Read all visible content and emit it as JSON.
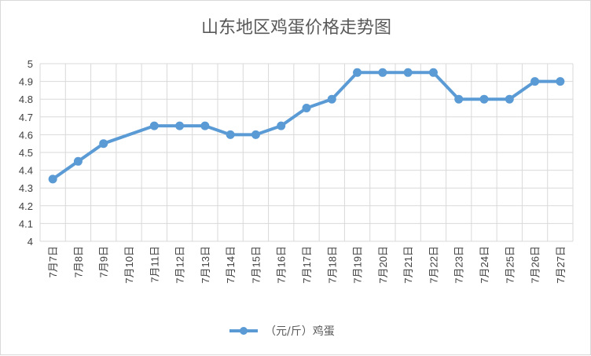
{
  "chart_data": {
    "type": "line",
    "title": "山东地区鸡蛋价格走势图",
    "categories": [
      "7月7日",
      "7月8日",
      "7月9日",
      "7月10日",
      "7月11日",
      "7月12日",
      "7月13日",
      "7月14日",
      "7月15日",
      "7月16日",
      "7月17日",
      "7月18日",
      "7月19日",
      "7月20日",
      "7月21日",
      "7月22日",
      "7月23日",
      "7月24日",
      "7月25日",
      "7月26日",
      "7月27日"
    ],
    "series": [
      {
        "name": "（元/斤）鸡蛋",
        "color": "#5b9bd5",
        "values": [
          4.35,
          4.45,
          4.55,
          null,
          4.65,
          4.65,
          4.65,
          4.6,
          4.6,
          4.65,
          4.75,
          4.8,
          4.95,
          4.95,
          4.95,
          4.95,
          4.8,
          4.8,
          4.8,
          4.9,
          4.9
        ]
      }
    ],
    "yticks": [
      "4",
      "4.1",
      "4.2",
      "4.3",
      "4.4",
      "4.5",
      "4.6",
      "4.7",
      "4.8",
      "4.9",
      "5"
    ],
    "ylim": [
      4,
      5
    ],
    "grid": true,
    "legend": "bottom",
    "gridline_color": "#d9d9d9"
  }
}
